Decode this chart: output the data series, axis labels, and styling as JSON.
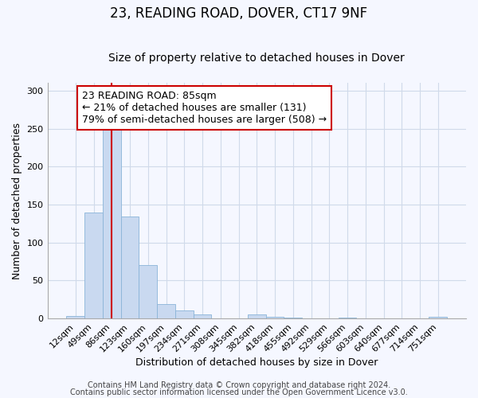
{
  "title": "23, READING ROAD, DOVER, CT17 9NF",
  "subtitle": "Size of property relative to detached houses in Dover",
  "xlabel": "Distribution of detached houses by size in Dover",
  "ylabel": "Number of detached properties",
  "footer_line1": "Contains HM Land Registry data © Crown copyright and database right 2024.",
  "footer_line2": "Contains public sector information licensed under the Open Government Licence v3.0.",
  "bin_labels": [
    "12sqm",
    "49sqm",
    "86sqm",
    "123sqm",
    "160sqm",
    "197sqm",
    "234sqm",
    "271sqm",
    "308sqm",
    "345sqm",
    "382sqm",
    "418sqm",
    "455sqm",
    "492sqm",
    "529sqm",
    "566sqm",
    "603sqm",
    "640sqm",
    "677sqm",
    "714sqm",
    "751sqm"
  ],
  "bar_heights": [
    3,
    139,
    252,
    134,
    70,
    19,
    11,
    5,
    0,
    0,
    5,
    2,
    1,
    0,
    0,
    1,
    0,
    0,
    0,
    0,
    2
  ],
  "bar_color": "#c9d9f0",
  "bar_edge_color": "#8ab4d8",
  "vline_x": 2,
  "vline_color": "#cc0000",
  "annotation_line1": "23 READING ROAD: 85sqm",
  "annotation_line2": "← 21% of detached houses are smaller (131)",
  "annotation_line3": "79% of semi-detached houses are larger (508) →",
  "annotation_box_fc": "white",
  "annotation_box_ec": "#cc0000",
  "ylim": [
    0,
    310
  ],
  "yticks": [
    0,
    50,
    100,
    150,
    200,
    250,
    300
  ],
  "grid_color": "#d0daea",
  "title_fontsize": 12,
  "subtitle_fontsize": 10,
  "axis_label_fontsize": 9,
  "tick_fontsize": 8,
  "annotation_fontsize": 9,
  "footer_fontsize": 7,
  "bg_color": "#f5f7ff"
}
